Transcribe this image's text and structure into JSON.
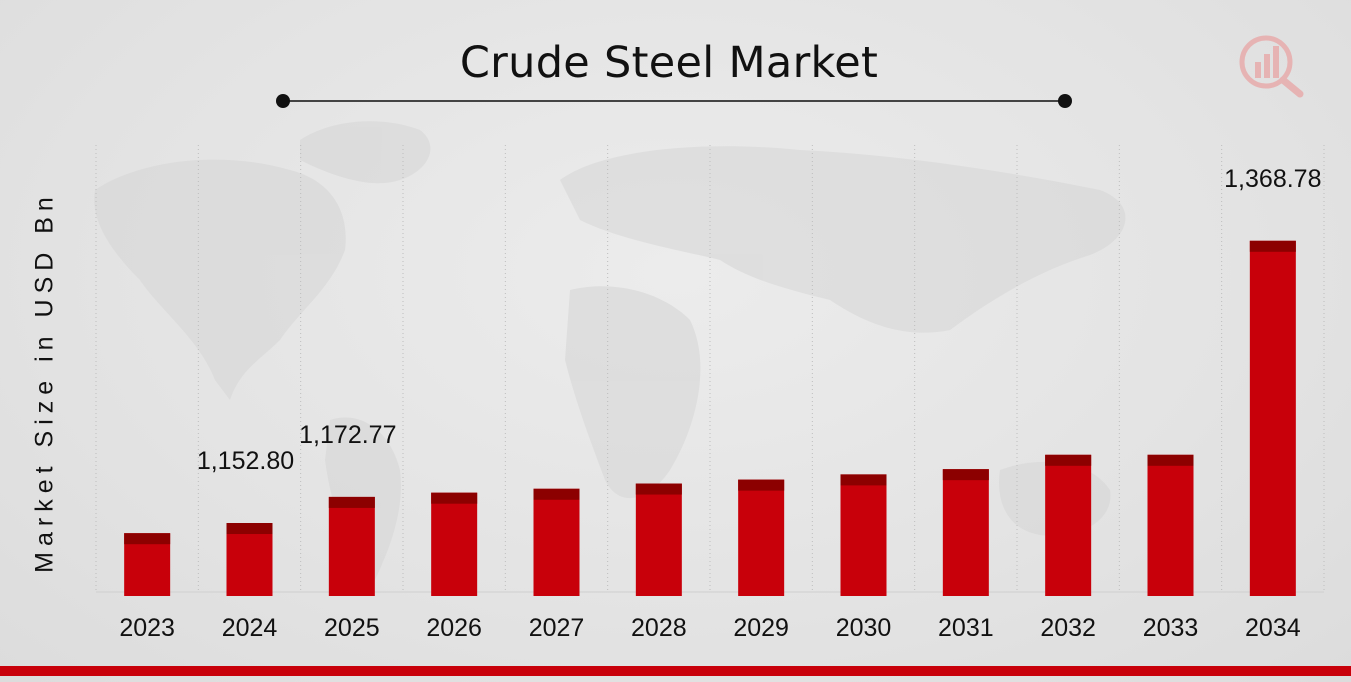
{
  "chart_data": {
    "type": "bar",
    "title": "Crude Steel Market",
    "xlabel": "",
    "ylabel": "Market Size in USD Bn",
    "categories": [
      "2023",
      "2024",
      "2025",
      "2026",
      "2027",
      "2028",
      "2029",
      "2030",
      "2031",
      "2032",
      "2033",
      "2034"
    ],
    "values": [
      1145,
      1152.8,
      1172.77,
      1176,
      1179,
      1183,
      1186,
      1190,
      1194,
      1205,
      1205,
      1368.78
    ],
    "data_labels": [
      {
        "category": "2024",
        "text": "1,152.80"
      },
      {
        "category": "2025",
        "text": "1,172.77"
      },
      {
        "category": "2034",
        "text": "1,368.78"
      }
    ],
    "grid": "vertical dotted",
    "legend": "none"
  },
  "colors": {
    "bar": "#c8000a",
    "bar_top": "#8c0000",
    "accent": "#c8000a"
  },
  "logo": {
    "icon": "analytics-magnifier-logo-icon"
  }
}
